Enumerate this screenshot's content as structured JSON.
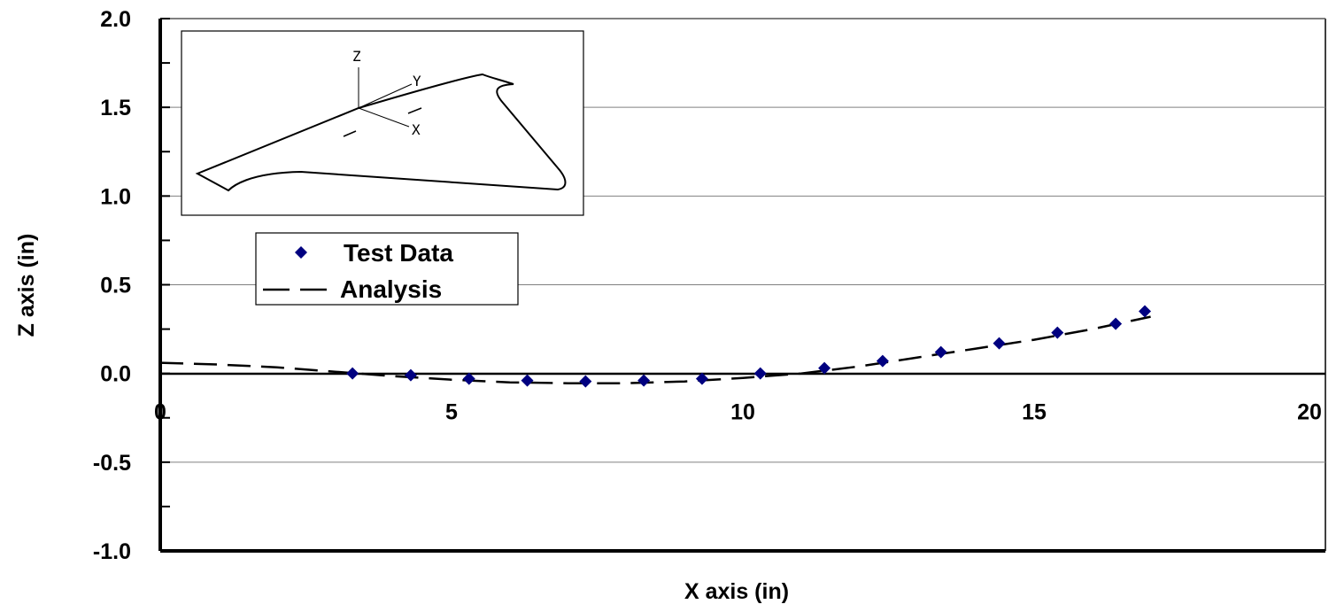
{
  "chart_data": {
    "type": "scatter",
    "xlabel": "X axis (in)",
    "ylabel": "Z axis (in)",
    "xlim": [
      0,
      20
    ],
    "ylim": [
      -1.0,
      2.0
    ],
    "x_ticks": [
      "0",
      "5",
      "10",
      "15",
      "20"
    ],
    "y_ticks": [
      "2.0",
      "1.5",
      "1.0",
      "0.5",
      "0.0",
      "-0.5",
      "-1.0"
    ],
    "grid": "horizontal",
    "legend_position": "upper-left",
    "series": [
      {
        "name": "Test Data",
        "style": "markers",
        "marker": "diamond",
        "color": "#000080",
        "points": [
          [
            3.3,
            0.0
          ],
          [
            4.3,
            -0.01
          ],
          [
            5.3,
            -0.03
          ],
          [
            6.3,
            -0.04
          ],
          [
            7.3,
            -0.045
          ],
          [
            8.3,
            -0.04
          ],
          [
            9.3,
            -0.03
          ],
          [
            10.3,
            0.0
          ],
          [
            11.4,
            0.03
          ],
          [
            12.4,
            0.07
          ],
          [
            13.4,
            0.12
          ],
          [
            14.4,
            0.17
          ],
          [
            15.4,
            0.23
          ],
          [
            16.4,
            0.28
          ],
          [
            16.9,
            0.35
          ]
        ]
      },
      {
        "name": "Analysis",
        "style": "dashed-line",
        "color": "#000000",
        "points": [
          [
            0,
            0.06
          ],
          [
            1,
            0.05
          ],
          [
            2,
            0.035
          ],
          [
            3,
            0.01
          ],
          [
            4,
            -0.015
          ],
          [
            5,
            -0.035
          ],
          [
            6,
            -0.05
          ],
          [
            7,
            -0.055
          ],
          [
            8,
            -0.055
          ],
          [
            9,
            -0.045
          ],
          [
            10,
            -0.025
          ],
          [
            11,
            0.0
          ],
          [
            12,
            0.04
          ],
          [
            13,
            0.09
          ],
          [
            14,
            0.14
          ],
          [
            15,
            0.19
          ],
          [
            16,
            0.25
          ],
          [
            17,
            0.32
          ]
        ]
      }
    ],
    "inset": {
      "axis_labels": [
        "Z",
        "Y",
        "X"
      ]
    }
  }
}
